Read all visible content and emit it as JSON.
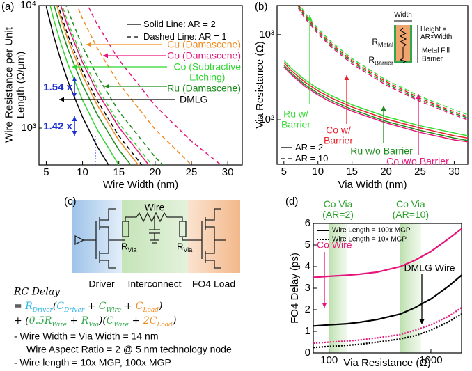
{
  "chart_data": [
    {
      "type": "line",
      "panel_label": "(a)",
      "x_label": "Wire Width (nm)",
      "y_label": "Wire Resistance per Unit\nLength (Ω/μm)",
      "xscale": "linear",
      "yscale": "log",
      "xlim": [
        4,
        32
      ],
      "ylim": [
        500,
        10000
      ],
      "xticks": [
        5,
        10,
        15,
        20,
        25,
        30
      ],
      "yticks": [
        {
          "value": 1000,
          "label": "10³"
        },
        {
          "value": 10000,
          "label": "10⁴"
        }
      ],
      "line_styles": [
        {
          "label": "Solid Line: AR = 2",
          "dash": "solid"
        },
        {
          "label": "Dashed Line: AR = 1",
          "dash": "dash"
        }
      ],
      "x": [
        5,
        6,
        7,
        8,
        10,
        12,
        15,
        20,
        25,
        30,
        32
      ],
      "series": [
        {
          "name": "Cu (Damascene)",
          "color": "#f28b1e",
          "values": [
            [
              null,
              12410,
              7810,
              5230,
              2680,
              1550,
              794,
              335,
              null,
              null,
              null
            ],
            [
              null,
              null,
              null,
              15260,
              7810,
              4520,
              2315,
              977,
              500,
              289,
              null
            ]
          ]
        },
        {
          "name": "Co (Damascene)",
          "color": "#e6157a",
          "values": [
            [
              null,
              15880,
              10000,
              6700,
              3430,
              1985,
              1016,
              429,
              null,
              null,
              null
            ],
            [
              null,
              null,
              null,
              null,
              12190,
              7060,
              3613,
              1524,
              780,
              452,
              372
            ]
          ]
        },
        {
          "name": "Co (Subtractive\nEtching)",
          "color": "#2fd62f",
          "values": [
            [
              13500,
              7810,
              4920,
              3300,
              1690,
              977,
              500,
              211,
              null,
              null,
              null
            ],
            [
              null,
              null,
              10810,
              7240,
              3710,
              2145,
              1098,
              463,
              null,
              null,
              null
            ]
          ]
        },
        {
          "name": "Ru (Damascene)",
          "color": "#1a8c1a",
          "values": [
            [
              null,
              10400,
              6550,
              4390,
              2250,
              1300,
              665,
              281,
              null,
              null,
              null
            ],
            [
              null,
              null,
              13500,
              9040,
              4630,
              2680,
              1372,
              579,
              296,
              null,
              null
            ]
          ]
        },
        {
          "name": "DMLG",
          "color": "#000000",
          "values": [
            [
              9840,
              5700,
              3590,
              2400,
              1230,
              712,
              365,
              null,
              null,
              null,
              null
            ],
            [
              null,
              13500,
              8500,
              5700,
              2920,
              1690,
              864,
              365,
              null,
              null,
              null
            ]
          ]
        }
      ],
      "annotations": [
        "1.54 x",
        "1.42 x"
      ]
    },
    {
      "type": "line",
      "panel_label": "(b)",
      "x_label": "Via Width (nm)",
      "y_label": "Via Resistance (Ω)",
      "xscale": "linear",
      "yscale": "log",
      "xlim": [
        4,
        32
      ],
      "ylim": [
        30,
        2200
      ],
      "xticks": [
        5,
        10,
        15,
        20,
        25,
        30
      ],
      "yticks": [
        {
          "value": 100,
          "label": "10²"
        },
        {
          "value": 1000,
          "label": "10³"
        }
      ],
      "line_styles": [
        {
          "label": "AR = 2",
          "dash": "solid"
        },
        {
          "label": "AR = 10",
          "dash": "dash"
        }
      ],
      "x": [
        5,
        6,
        8,
        10,
        12,
        15,
        20,
        25,
        30,
        32
      ],
      "series": [
        {
          "name": "Ru w/\nBarrier",
          "color": "#33dd33",
          "values": [
            [
              500,
              409,
              298,
              233,
              191,
              150,
              109,
              85,
              70,
              65
            ],
            [
              null,
              3270,
              1840,
              1178,
              818,
              523,
              294,
              188,
              131,
              115
            ]
          ]
        },
        {
          "name": "Co w/\nBarrier",
          "color": "#e8202a",
          "values": [
            [
              470,
              384,
              280,
              219,
              180,
              141,
              102,
              80,
              65,
              61
            ],
            [
              null,
              3110,
              1750,
              1120,
              777,
              497,
              280,
              179,
              124,
              109
            ]
          ]
        },
        {
          "name": "Ru w/o Barrier",
          "color": "#1a8c1a",
          "values": [
            [
              440,
              360,
              262,
              205,
              168,
              132,
              96,
              75,
              61,
              57
            ],
            [
              null,
              2980,
              1675,
              1072,
              744,
              476,
              268,
              171,
              119,
              105
            ]
          ]
        },
        {
          "name": "Co w/o Barrier",
          "color": "#e6157a",
          "values": [
            [
              420,
              344,
              250,
              196,
              160,
              126,
              92,
              71,
              58,
              55
            ],
            [
              null,
              2850,
              1600,
              1025,
              712,
              455,
              256,
              164,
              114,
              100
            ]
          ]
        }
      ],
      "inset": {
        "width_label": "Width",
        "height_label": "Height =\nAR×Width",
        "metal_fill": "Metal Fill",
        "barrier": "Barrier",
        "r_metal": {
          "base": "R",
          "sub": "Metal"
        },
        "r_barrier": {
          "base": "R",
          "sub": "Barrier"
        }
      }
    },
    {
      "type": "line",
      "panel_label": "(d)",
      "x_label": "Via Resistance (Ω)",
      "y_label": "FO4 Delay (ps)",
      "xscale": "log",
      "yscale": "linear",
      "xlim": [
        70,
        2000
      ],
      "ylim": [
        0,
        6
      ],
      "xticks": [
        100,
        1000
      ],
      "yticks": [
        0,
        1,
        2,
        3,
        4,
        5,
        6
      ],
      "line_styles": [
        {
          "label": "Wire Length = 100x MGP",
          "dash": "solid"
        },
        {
          "label": "Wire Length = 10x MGP",
          "dash": "dot"
        }
      ],
      "x": [
        70,
        100,
        150,
        200,
        300,
        500,
        700,
        1000,
        1500,
        2000
      ],
      "series": [
        {
          "name": "Co Wire",
          "color": "#e6157a",
          "values": [
            [
              3.5,
              3.55,
              3.6,
              3.65,
              3.75,
              4.0,
              4.3,
              4.7,
              5.3,
              5.75
            ],
            [
              0.45,
              0.5,
              0.55,
              0.6,
              0.7,
              0.85,
              1.05,
              1.3,
              1.7,
              2.1
            ]
          ]
        },
        {
          "name": "DMLG Wire",
          "color": "#000000",
          "values": [
            [
              1.25,
              1.3,
              1.35,
              1.42,
              1.55,
              1.8,
              2.1,
              2.5,
              3.1,
              3.6
            ],
            [
              0.25,
              0.3,
              0.35,
              0.4,
              0.5,
              0.65,
              0.8,
              1.05,
              1.45,
              1.8
            ]
          ]
        }
      ],
      "bands": [
        {
          "label": "Co Via\n(AR=2)",
          "x": [
            100,
            150
          ]
        },
        {
          "label": "Co Via\n(AR=10)",
          "x": [
            500,
            800
          ]
        }
      ]
    }
  ],
  "diagram": {
    "label": "(c)",
    "wire": "Wire",
    "r_via": {
      "base": "R",
      "sub": "Via"
    },
    "sections": [
      "Driver",
      "Interconnect",
      "FO4 Load"
    ],
    "rc_delay": "RC Delay",
    "equation": [
      [
        {
          "text": "= "
        },
        {
          "base": "R",
          "sub": "Driver",
          "color": "#2fb5e6"
        },
        {
          "text": "("
        },
        {
          "base": "C",
          "sub": "Driver",
          "color": "#2fb5e6"
        },
        {
          "text": " + "
        },
        {
          "base": "C",
          "sub": "Wire",
          "color": "#2ea84a"
        },
        {
          "text": " + "
        },
        {
          "base": "C",
          "sub": "Load",
          "color": "#f28b1e"
        },
        {
          "text": ")"
        }
      ],
      [
        {
          "text": "+ ("
        },
        {
          "text": "0.5",
          "color": "#2ea84a"
        },
        {
          "base": "R",
          "sub": "Wire",
          "color": "#2ea84a"
        },
        {
          "text": " + "
        },
        {
          "base": "R",
          "sub": "Via",
          "color": "#2ea84a"
        },
        {
          "text": ")("
        },
        {
          "base": "C",
          "sub": "Wire",
          "color": "#2ea84a"
        },
        {
          "text": " + "
        },
        {
          "text": "2",
          "color": "#f28b1e"
        },
        {
          "base": "C",
          "sub": "Load",
          "color": "#f28b1e"
        },
        {
          "text": ")"
        }
      ]
    ],
    "notes": [
      "- Wire Width = Via Width = 14 nm",
      "Wire Aspect Ratio = 2 @ 5 nm technology node",
      "- Wire length = 10x MGP, 100x MGP"
    ]
  }
}
